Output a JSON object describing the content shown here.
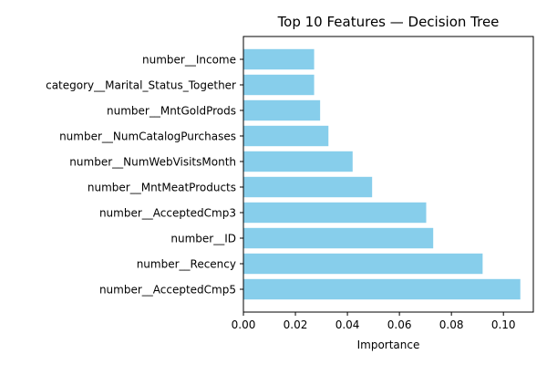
{
  "chart_data": {
    "type": "bar",
    "orientation": "horizontal",
    "title": "Top 10 Features — Decision Tree",
    "xlabel": "Importance",
    "ylabel": "",
    "categories": [
      "number__AcceptedCmp5",
      "number__Recency",
      "number__ID",
      "number__AcceptedCmp3",
      "number__MntMeatProducts",
      "number__NumWebVisitsMonth",
      "number__NumCatalogPurchases",
      "number__MntGoldProds",
      "category__Marital_Status_Together",
      "number__Income"
    ],
    "values": [
      0.1065,
      0.092,
      0.073,
      0.0703,
      0.0495,
      0.042,
      0.0327,
      0.0295,
      0.0272,
      0.0272
    ],
    "xlim": [
      0,
      0.1115
    ],
    "xticks": [
      0.0,
      0.02,
      0.04,
      0.06,
      0.08,
      0.1
    ],
    "xtick_labels": [
      "0.00",
      "0.02",
      "0.04",
      "0.06",
      "0.08",
      "0.10"
    ],
    "bar_color": "#87ceeb",
    "grid": false,
    "legend": "none"
  }
}
